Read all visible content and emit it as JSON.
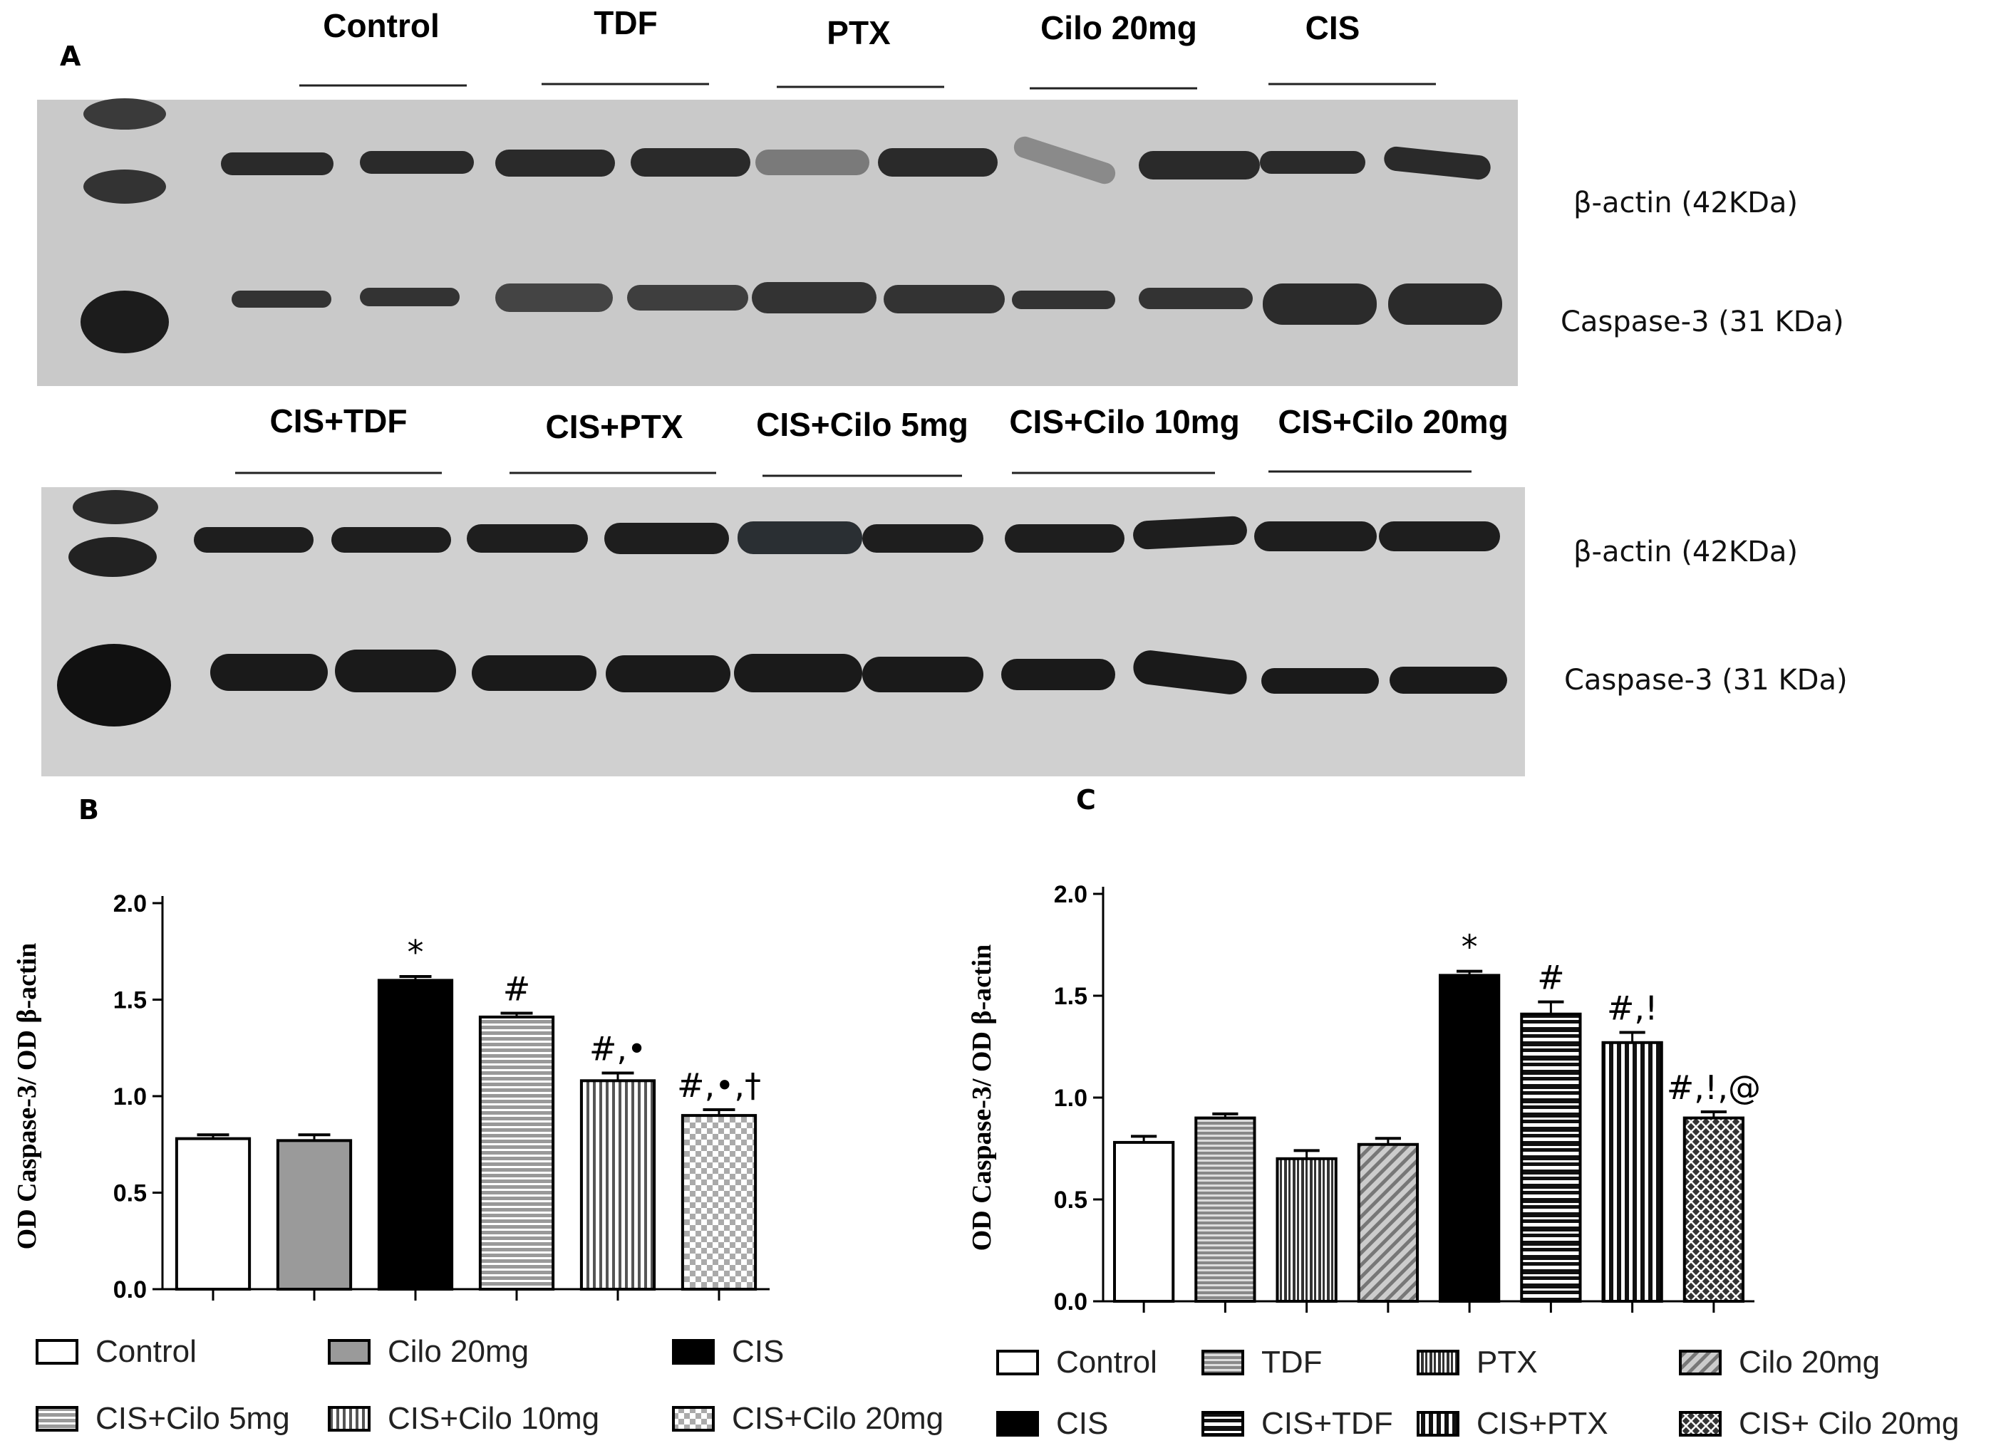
{
  "panel_letters": [
    "A",
    "B",
    "C"
  ],
  "blot": {
    "top_lane_labels": [
      "Control",
      "TDF",
      "PTX",
      "Cilo 20mg",
      "CIS"
    ],
    "bottom_lane_labels": [
      "CIS+TDF",
      "CIS+PTX",
      "CIS+Cilo 5mg",
      "CIS+Cilo 10mg",
      "CIS+Cilo 20mg"
    ],
    "protein_labels": {
      "actin_top": "β-actin (42KDa)",
      "casp_top": "Caspase-3 (31 KDa)",
      "actin_bottom": "β-actin (42KDa)",
      "casp_bottom": "Caspase-3 (31 KDa)"
    }
  },
  "chart_data": [
    {
      "type": "bar",
      "panel": "B",
      "ylabel": "OD Caspase-3/ OD β-actin",
      "ylim": [
        0,
        2.0
      ],
      "yticks": [
        "0.0",
        "0.5",
        "1.0",
        "1.5",
        "2.0"
      ],
      "categories": [
        "Control",
        "Cilo 20mg",
        "CIS",
        "CIS+Cilo 5mg",
        "CIS+Cilo 10mg",
        "CIS+Cilo 20mg"
      ],
      "values": [
        0.78,
        0.77,
        1.6,
        1.41,
        1.08,
        0.9
      ],
      "errors": [
        0.02,
        0.03,
        0.02,
        0.02,
        0.04,
        0.03
      ],
      "annotations": [
        "",
        "",
        "*",
        "#",
        "#,•",
        "#,•,†"
      ],
      "patterns": [
        "white",
        "gray",
        "black",
        "hstripes",
        "vstripes",
        "checker"
      ],
      "legend": [
        "Control",
        "Cilo 20mg",
        "CIS",
        "CIS+Cilo 5mg",
        "CIS+Cilo 10mg",
        "CIS+Cilo 20mg"
      ],
      "legend_placement": "bottom"
    },
    {
      "type": "bar",
      "panel": "C",
      "ylabel": "OD Caspase-3/ OD β-actin",
      "ylim": [
        0,
        2.0
      ],
      "yticks": [
        "0.0",
        "0.5",
        "1.0",
        "1.5",
        "2.0"
      ],
      "categories": [
        "Control",
        "TDF",
        "PTX",
        "Cilo 20mg",
        "CIS",
        "CIS+TDF",
        "CIS+PTX",
        "CIS+ Cilo 20mg"
      ],
      "values": [
        0.78,
        0.9,
        0.7,
        0.77,
        1.6,
        1.41,
        1.27,
        0.9
      ],
      "errors": [
        0.03,
        0.02,
        0.04,
        0.03,
        0.02,
        0.06,
        0.05,
        0.03
      ],
      "annotations": [
        "",
        "",
        "",
        "",
        "*",
        "#",
        "#,!",
        "#,!,@"
      ],
      "patterns": [
        "white",
        "hstripes-gray",
        "vstripes-dense",
        "diag-gray",
        "black",
        "hstripes-wide",
        "vstripes-wide",
        "crosshatch"
      ],
      "legend": [
        "Control",
        "TDF",
        "PTX",
        "Cilo 20mg",
        "CIS",
        "CIS+TDF",
        "CIS+PTX",
        "CIS+ Cilo 20mg"
      ],
      "legend_placement": "bottom"
    }
  ]
}
